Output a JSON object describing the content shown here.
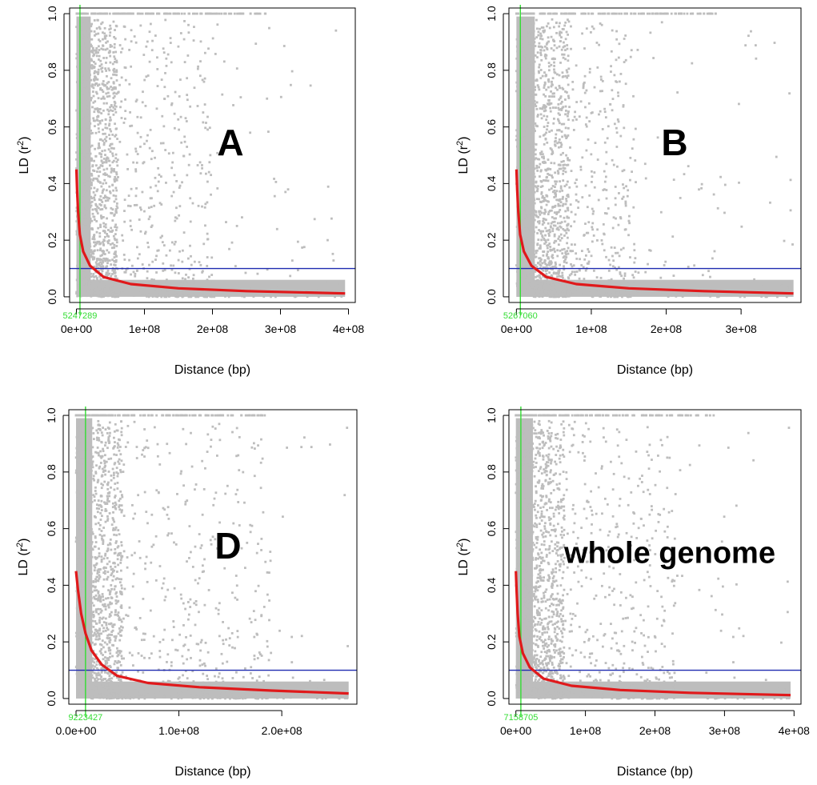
{
  "figure": {
    "y_axis_label": "LD (r",
    "y_axis_label_sup": "2",
    "y_axis_label_close": ")",
    "x_axis_label": "Distance (bp)"
  },
  "colors": {
    "points": "#bdbdbd",
    "decay_curve": "#e0191b",
    "threshold_line": "#1f2bb0",
    "decay_marker": "#33dd33",
    "frame": "#000000"
  },
  "chart_data": [
    {
      "type": "scatter",
      "panel_label": "A",
      "title": "",
      "xlabel": "Distance (bp)",
      "ylabel": "LD (r2)",
      "xlim": [
        -10000000,
        410000000
      ],
      "ylim": [
        -0.02,
        1.02
      ],
      "x_tick_values": [
        0,
        100000000,
        200000000,
        300000000,
        400000000
      ],
      "x_tick_labels": [
        "0e+00",
        "1e+08",
        "2e+08",
        "3e+08",
        "4e+08"
      ],
      "y_tick_values": [
        0,
        0.2,
        0.4,
        0.6,
        0.8,
        1.0
      ],
      "y_tick_labels": [
        "0.0",
        "0.2",
        "0.4",
        "0.6",
        "0.8",
        "1.0"
      ],
      "threshold_r2": 0.1,
      "decay_distance": 5247289,
      "decay_distance_label": "5247289",
      "x_max": 395000000,
      "scatter_dense_extent": 60000000,
      "scatter_medium_extent": 200000000,
      "decay_curve": {
        "x": [
          0,
          1000000,
          2500000,
          5000000,
          10000000,
          20000000,
          40000000,
          80000000,
          150000000,
          250000000,
          395000000
        ],
        "y": [
          0.45,
          0.38,
          0.3,
          0.22,
          0.16,
          0.11,
          0.07,
          0.045,
          0.03,
          0.02,
          0.012
        ]
      }
    },
    {
      "type": "scatter",
      "panel_label": "B",
      "title": "",
      "xlabel": "Distance (bp)",
      "ylabel": "LD (r2)",
      "xlim": [
        -10000000,
        380000000
      ],
      "ylim": [
        -0.02,
        1.02
      ],
      "x_tick_values": [
        0,
        100000000,
        200000000,
        300000000
      ],
      "x_tick_labels": [
        "0e+00",
        "1e+08",
        "2e+08",
        "3e+08"
      ],
      "y_tick_values": [
        0,
        0.2,
        0.4,
        0.6,
        0.8,
        1.0
      ],
      "y_tick_labels": [
        "0.0",
        "0.2",
        "0.4",
        "0.6",
        "0.8",
        "1.0"
      ],
      "threshold_r2": 0.1,
      "decay_distance": 5267060,
      "decay_distance_label": "5267060",
      "x_max": 370000000,
      "scatter_dense_extent": 70000000,
      "scatter_medium_extent": 160000000,
      "decay_curve": {
        "x": [
          0,
          1000000,
          2500000,
          5000000,
          10000000,
          20000000,
          40000000,
          80000000,
          150000000,
          250000000,
          370000000
        ],
        "y": [
          0.45,
          0.38,
          0.3,
          0.22,
          0.16,
          0.11,
          0.07,
          0.045,
          0.03,
          0.02,
          0.012
        ]
      }
    },
    {
      "type": "scatter",
      "panel_label": "D",
      "title": "",
      "xlabel": "Distance (bp)",
      "ylabel": "LD (r2)",
      "xlim": [
        -7000000,
        273000000
      ],
      "ylim": [
        -0.02,
        1.02
      ],
      "x_tick_values": [
        0,
        100000000,
        200000000
      ],
      "x_tick_labels": [
        "0.0e+00",
        "1.0e+08",
        "2.0e+08"
      ],
      "y_tick_values": [
        0,
        0.2,
        0.4,
        0.6,
        0.8,
        1.0
      ],
      "y_tick_labels": [
        "0.0",
        "0.2",
        "0.4",
        "0.6",
        "0.8",
        "1.0"
      ],
      "threshold_r2": 0.1,
      "decay_distance": 9223427,
      "decay_distance_label": "9223427",
      "x_max": 265000000,
      "scatter_dense_extent": 45000000,
      "scatter_medium_extent": 190000000,
      "decay_curve": {
        "x": [
          0,
          2000000,
          5000000,
          9223427,
          15000000,
          25000000,
          40000000,
          70000000,
          120000000,
          190000000,
          265000000
        ],
        "y": [
          0.45,
          0.38,
          0.3,
          0.23,
          0.17,
          0.12,
          0.08,
          0.055,
          0.04,
          0.028,
          0.018
        ]
      }
    },
    {
      "type": "scatter",
      "panel_label": "whole genome",
      "title": "",
      "xlabel": "Distance (bp)",
      "ylabel": "LD (r2)",
      "xlim": [
        -10000000,
        410000000
      ],
      "ylim": [
        -0.02,
        1.02
      ],
      "x_tick_values": [
        0,
        100000000,
        200000000,
        300000000,
        400000000
      ],
      "x_tick_labels": [
        "0e+00",
        "1e+08",
        "2e+08",
        "3e+08",
        "4e+08"
      ],
      "y_tick_values": [
        0,
        0.2,
        0.4,
        0.6,
        0.8,
        1.0
      ],
      "y_tick_labels": [
        "0.0",
        "0.2",
        "0.4",
        "0.6",
        "0.8",
        "1.0"
      ],
      "threshold_r2": 0.1,
      "decay_distance": 7158705,
      "decay_distance_label": "7158705",
      "x_max": 395000000,
      "scatter_dense_extent": 70000000,
      "scatter_medium_extent": 230000000,
      "decay_curve": {
        "x": [
          0,
          1000000,
          2500000,
          5000000,
          10000000,
          20000000,
          40000000,
          80000000,
          150000000,
          250000000,
          395000000
        ],
        "y": [
          0.45,
          0.38,
          0.3,
          0.22,
          0.16,
          0.11,
          0.07,
          0.045,
          0.03,
          0.02,
          0.012
        ]
      }
    }
  ]
}
